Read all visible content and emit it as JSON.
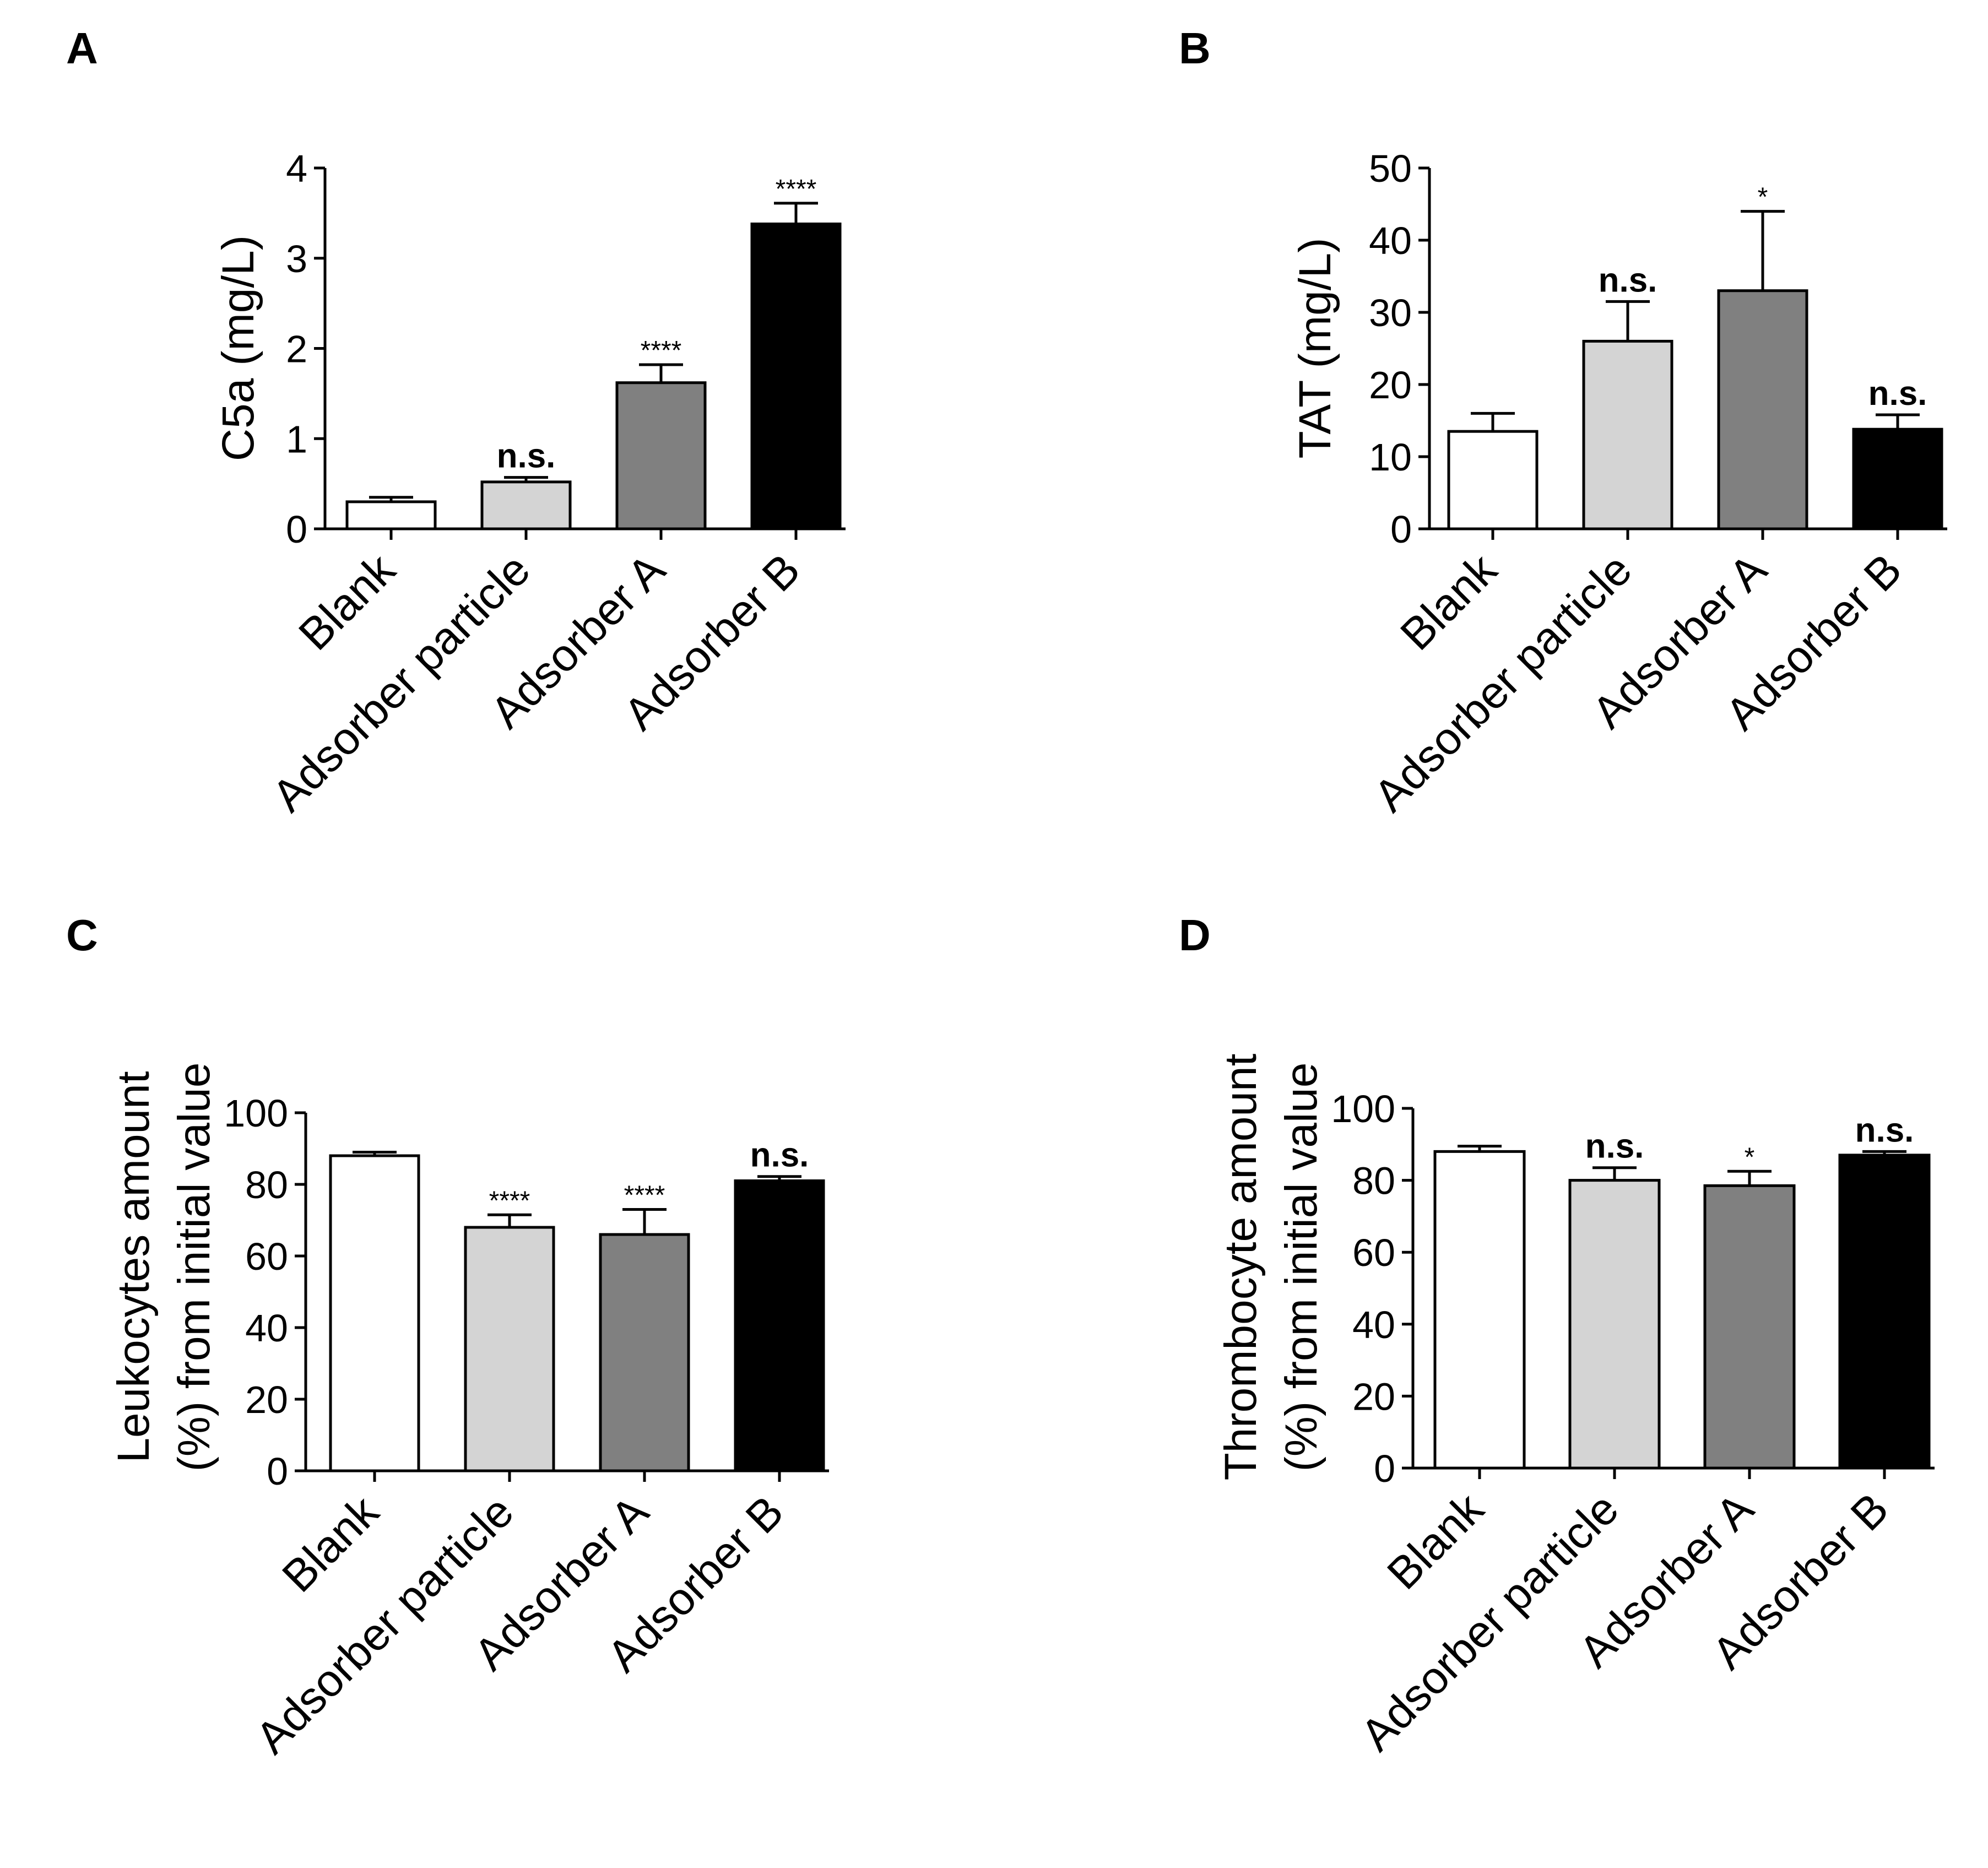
{
  "chart_data": [
    {
      "panel": "A",
      "type": "bar",
      "ylabel": "C5a (mg/L)",
      "categories": [
        "Blank",
        "Adsorber particle",
        "Adsorber A",
        "Adsorber B"
      ],
      "values": [
        0.3,
        0.52,
        1.62,
        3.38
      ],
      "errors": [
        0.05,
        0.05,
        0.2,
        0.23
      ],
      "significance": [
        "",
        "n.s.",
        "****",
        "****"
      ],
      "colors": [
        "#ffffff",
        "#d4d4d4",
        "#808080",
        "#000000"
      ],
      "ylim": [
        0,
        4
      ],
      "yticks": [
        0,
        1,
        2,
        3,
        4
      ]
    },
    {
      "panel": "B",
      "type": "bar",
      "ylabel": "TAT (mg/L)",
      "categories": [
        "Blank",
        "Adsorber particle",
        "Adsorber A",
        "Adsorber B"
      ],
      "values": [
        13.5,
        26,
        33,
        13.8
      ],
      "errors": [
        2.5,
        5.5,
        11,
        2
      ],
      "significance": [
        "",
        "n.s.",
        "*",
        "n.s."
      ],
      "colors": [
        "#ffffff",
        "#d4d4d4",
        "#808080",
        "#000000"
      ],
      "ylim": [
        0,
        50
      ],
      "yticks": [
        0,
        10,
        20,
        30,
        40,
        50
      ]
    },
    {
      "panel": "C",
      "type": "bar",
      "ylabel": [
        "Leukocytes amount",
        "(%) from initial value"
      ],
      "categories": [
        "Blank",
        "Adsorber particle",
        "Adsorber A",
        "Adsorber B"
      ],
      "values": [
        88,
        68,
        66,
        81
      ],
      "errors": [
        1,
        3.5,
        7,
        1.2
      ],
      "significance": [
        "",
        "****",
        "****",
        "n.s."
      ],
      "colors": [
        "#ffffff",
        "#d4d4d4",
        "#808080",
        "#000000"
      ],
      "ylim": [
        0,
        100
      ],
      "yticks": [
        0,
        20,
        40,
        60,
        80,
        100
      ]
    },
    {
      "panel": "D",
      "type": "bar",
      "ylabel": [
        "Thrombocyte amount",
        "(%) from initial value"
      ],
      "categories": [
        "Blank",
        "Adsorber particle",
        "Adsorber A",
        "Adsorber B"
      ],
      "values": [
        88,
        80,
        78.5,
        87
      ],
      "errors": [
        1.5,
        3.5,
        4,
        1
      ],
      "significance": [
        "",
        "n.s.",
        "*",
        "n.s."
      ],
      "colors": [
        "#ffffff",
        "#d4d4d4",
        "#808080",
        "#000000"
      ],
      "ylim": [
        0,
        100
      ],
      "yticks": [
        0,
        20,
        40,
        60,
        80,
        100
      ]
    }
  ]
}
